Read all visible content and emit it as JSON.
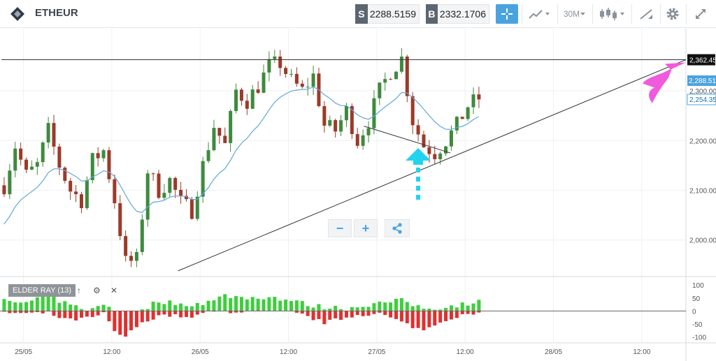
{
  "toolbar": {
    "symbol": "ETHEUR",
    "sell_tag": "S",
    "sell_price": "2288.5159",
    "buy_tag": "B",
    "buy_price": "2332.1706",
    "timeframe": "30M",
    "icons": [
      "crosshair-icon",
      "chart-type-icon",
      "candles-icon",
      "draw-tool-icon",
      "gear-icon",
      "fullscreen-icon"
    ]
  },
  "indicator": {
    "label": "ELDER RAY (13)",
    "move_up": "↑",
    "settings": "⚙",
    "close": "✕"
  },
  "zoom": {
    "minus": "−",
    "plus": "+"
  },
  "colors": {
    "bull_candle": "#3e8a3e",
    "bear_candle": "#9b3a2a",
    "ma_line": "#5fa8d8",
    "bull_power": "#3ccf3c",
    "bear_power": "#e03030",
    "arrow_cyan": "#22d3ee",
    "arrow_magenta": "#f05adc",
    "accent": "#4aa3df"
  },
  "chart_data": {
    "type": "candlestick",
    "price_ticks": [
      "2,000.00",
      "2,100.00",
      "2,200.00",
      "2,300.00"
    ],
    "price_levels": [
      2000,
      2100,
      2200,
      2300
    ],
    "ylim": [
      1928,
      2425
    ],
    "current_price_label": "2,288.515",
    "ma_label": "2,254.35",
    "marker_label": "2,362.45",
    "marker_price": 2362.45,
    "x_ticks": [
      "25/05",
      "12:00",
      "26/05",
      "12:00",
      "27/05",
      "12:00",
      "28/05",
      "12:00"
    ],
    "x_tick_index": [
      12,
      60,
      108,
      156,
      204,
      252,
      300,
      348
    ],
    "n_slots": 372,
    "candle_step": 3,
    "anchors": [
      {
        "t": 0,
        "p": 2110
      },
      {
        "t": 6,
        "p": 2190
      },
      {
        "t": 12,
        "p": 2130
      },
      {
        "t": 18,
        "p": 2150
      },
      {
        "t": 24,
        "p": 2220
      },
      {
        "t": 30,
        "p": 2150
      },
      {
        "t": 36,
        "p": 2100
      },
      {
        "t": 42,
        "p": 2080
      },
      {
        "t": 48,
        "p": 2160
      },
      {
        "t": 54,
        "p": 2180
      },
      {
        "t": 60,
        "p": 2080
      },
      {
        "t": 66,
        "p": 1955
      },
      {
        "t": 72,
        "p": 1960
      },
      {
        "t": 78,
        "p": 2140
      },
      {
        "t": 84,
        "p": 2100
      },
      {
        "t": 90,
        "p": 2120
      },
      {
        "t": 96,
        "p": 2075
      },
      {
        "t": 102,
        "p": 2060
      },
      {
        "t": 108,
        "p": 2150
      },
      {
        "t": 114,
        "p": 2230
      },
      {
        "t": 120,
        "p": 2190
      },
      {
        "t": 126,
        "p": 2300
      },
      {
        "t": 132,
        "p": 2280
      },
      {
        "t": 138,
        "p": 2310
      },
      {
        "t": 144,
        "p": 2350
      },
      {
        "t": 150,
        "p": 2355
      },
      {
        "t": 156,
        "p": 2320
      },
      {
        "t": 162,
        "p": 2300
      },
      {
        "t": 168,
        "p": 2330
      },
      {
        "t": 174,
        "p": 2230
      },
      {
        "t": 180,
        "p": 2220
      },
      {
        "t": 186,
        "p": 2260
      },
      {
        "t": 192,
        "p": 2200
      },
      {
        "t": 198,
        "p": 2240
      },
      {
        "t": 204,
        "p": 2300
      },
      {
        "t": 210,
        "p": 2340
      },
      {
        "t": 216,
        "p": 2365
      },
      {
        "t": 222,
        "p": 2240
      },
      {
        "t": 228,
        "p": 2190
      },
      {
        "t": 234,
        "p": 2175
      },
      {
        "t": 240,
        "p": 2200
      },
      {
        "t": 246,
        "p": 2230
      },
      {
        "t": 252,
        "p": 2270
      },
      {
        "t": 258,
        "p": 2285
      }
    ],
    "elder_ray_ticks": [
      "100",
      "50",
      "0",
      "-50",
      "-100"
    ],
    "elder_ray_levels": [
      100,
      50,
      0,
      -50,
      -100
    ],
    "elder_ray_ylim": [
      -120,
      130
    ],
    "bull_power_anchors": [
      {
        "t": 0,
        "v": 40
      },
      {
        "t": 12,
        "v": 30
      },
      {
        "t": 24,
        "v": 60
      },
      {
        "t": 36,
        "v": 20
      },
      {
        "t": 48,
        "v": 5
      },
      {
        "t": 54,
        "v": 25
      },
      {
        "t": 60,
        "v": 5
      },
      {
        "t": 66,
        "v": -20
      },
      {
        "t": 72,
        "v": -10
      },
      {
        "t": 84,
        "v": 40
      },
      {
        "t": 96,
        "v": 25
      },
      {
        "t": 108,
        "v": 30
      },
      {
        "t": 114,
        "v": 40
      },
      {
        "t": 120,
        "v": 60
      },
      {
        "t": 132,
        "v": 50
      },
      {
        "t": 144,
        "v": 55
      },
      {
        "t": 156,
        "v": 40
      },
      {
        "t": 168,
        "v": 20
      },
      {
        "t": 174,
        "v": 15
      },
      {
        "t": 186,
        "v": 10
      },
      {
        "t": 198,
        "v": 25
      },
      {
        "t": 210,
        "v": 35
      },
      {
        "t": 216,
        "v": 40
      },
      {
        "t": 228,
        "v": 10
      },
      {
        "t": 240,
        "v": 15
      },
      {
        "t": 252,
        "v": 30
      },
      {
        "t": 258,
        "v": 35
      }
    ],
    "bear_power_anchors": [
      {
        "t": 0,
        "v": -5
      },
      {
        "t": 12,
        "v": -10
      },
      {
        "t": 24,
        "v": -8
      },
      {
        "t": 30,
        "v": -25
      },
      {
        "t": 36,
        "v": -35
      },
      {
        "t": 48,
        "v": -25
      },
      {
        "t": 54,
        "v": -10
      },
      {
        "t": 60,
        "v": -80
      },
      {
        "t": 66,
        "v": -100
      },
      {
        "t": 72,
        "v": -60
      },
      {
        "t": 84,
        "v": -15
      },
      {
        "t": 96,
        "v": -20
      },
      {
        "t": 102,
        "v": -30
      },
      {
        "t": 108,
        "v": -5
      },
      {
        "t": 120,
        "v": -2
      },
      {
        "t": 144,
        "v": -3
      },
      {
        "t": 156,
        "v": -5
      },
      {
        "t": 162,
        "v": -15
      },
      {
        "t": 174,
        "v": -45
      },
      {
        "t": 180,
        "v": -35
      },
      {
        "t": 192,
        "v": -15
      },
      {
        "t": 204,
        "v": -10
      },
      {
        "t": 222,
        "v": -60
      },
      {
        "t": 228,
        "v": -75
      },
      {
        "t": 234,
        "v": -50
      },
      {
        "t": 246,
        "v": -20
      },
      {
        "t": 258,
        "v": -10
      }
    ],
    "lines": [
      {
        "name": "ascending-trendline",
        "from": {
          "t": 96,
          "p": 1938
        },
        "to": {
          "t": 372,
          "p": 2362.45
        }
      },
      {
        "name": "resistance-line",
        "from": {
          "t": 0,
          "p": 2362.45
        },
        "to": {
          "t": 372,
          "p": 2362.45
        }
      },
      {
        "name": "neckline",
        "from": {
          "t": 197,
          "p": 2229
        },
        "to": {
          "t": 244,
          "p": 2175
        }
      }
    ],
    "annotations": [
      {
        "name": "up-arrow",
        "type": "arrow",
        "color": "cyan",
        "at": {
          "t": 228,
          "p": 2185
        }
      },
      {
        "name": "pointer-arrow",
        "type": "arrow",
        "color": "magenta",
        "at": {
          "t": 367,
          "p": 2362
        }
      }
    ]
  }
}
